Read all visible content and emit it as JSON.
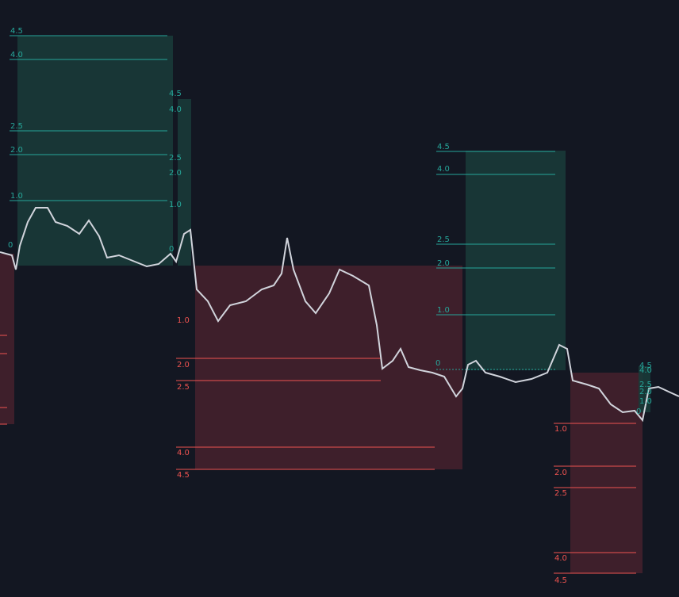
{
  "tools": [
    {
      "profit_levels": [
        "4.5",
        "4.0",
        "2.5",
        "2.0",
        "1.0",
        "0"
      ]
    },
    {
      "profit_levels": [
        "4.5",
        "4.0",
        "2.5",
        "2.0",
        "1.0",
        "0"
      ],
      "loss_levels": [
        "1.0",
        "2.0",
        "2.5",
        "4.0",
        "4.5"
      ]
    },
    {
      "profit_levels": [
        "4.5",
        "4.0",
        "2.5",
        "2.0",
        "1.0",
        "0"
      ],
      "loss_levels": [
        "1.0",
        "2.0",
        "2.5",
        "4.0",
        "4.5"
      ]
    },
    {
      "profit_levels": [
        "4.5",
        "4.0",
        "2.5",
        "2.0",
        "1.0",
        "0"
      ]
    }
  ]
}
